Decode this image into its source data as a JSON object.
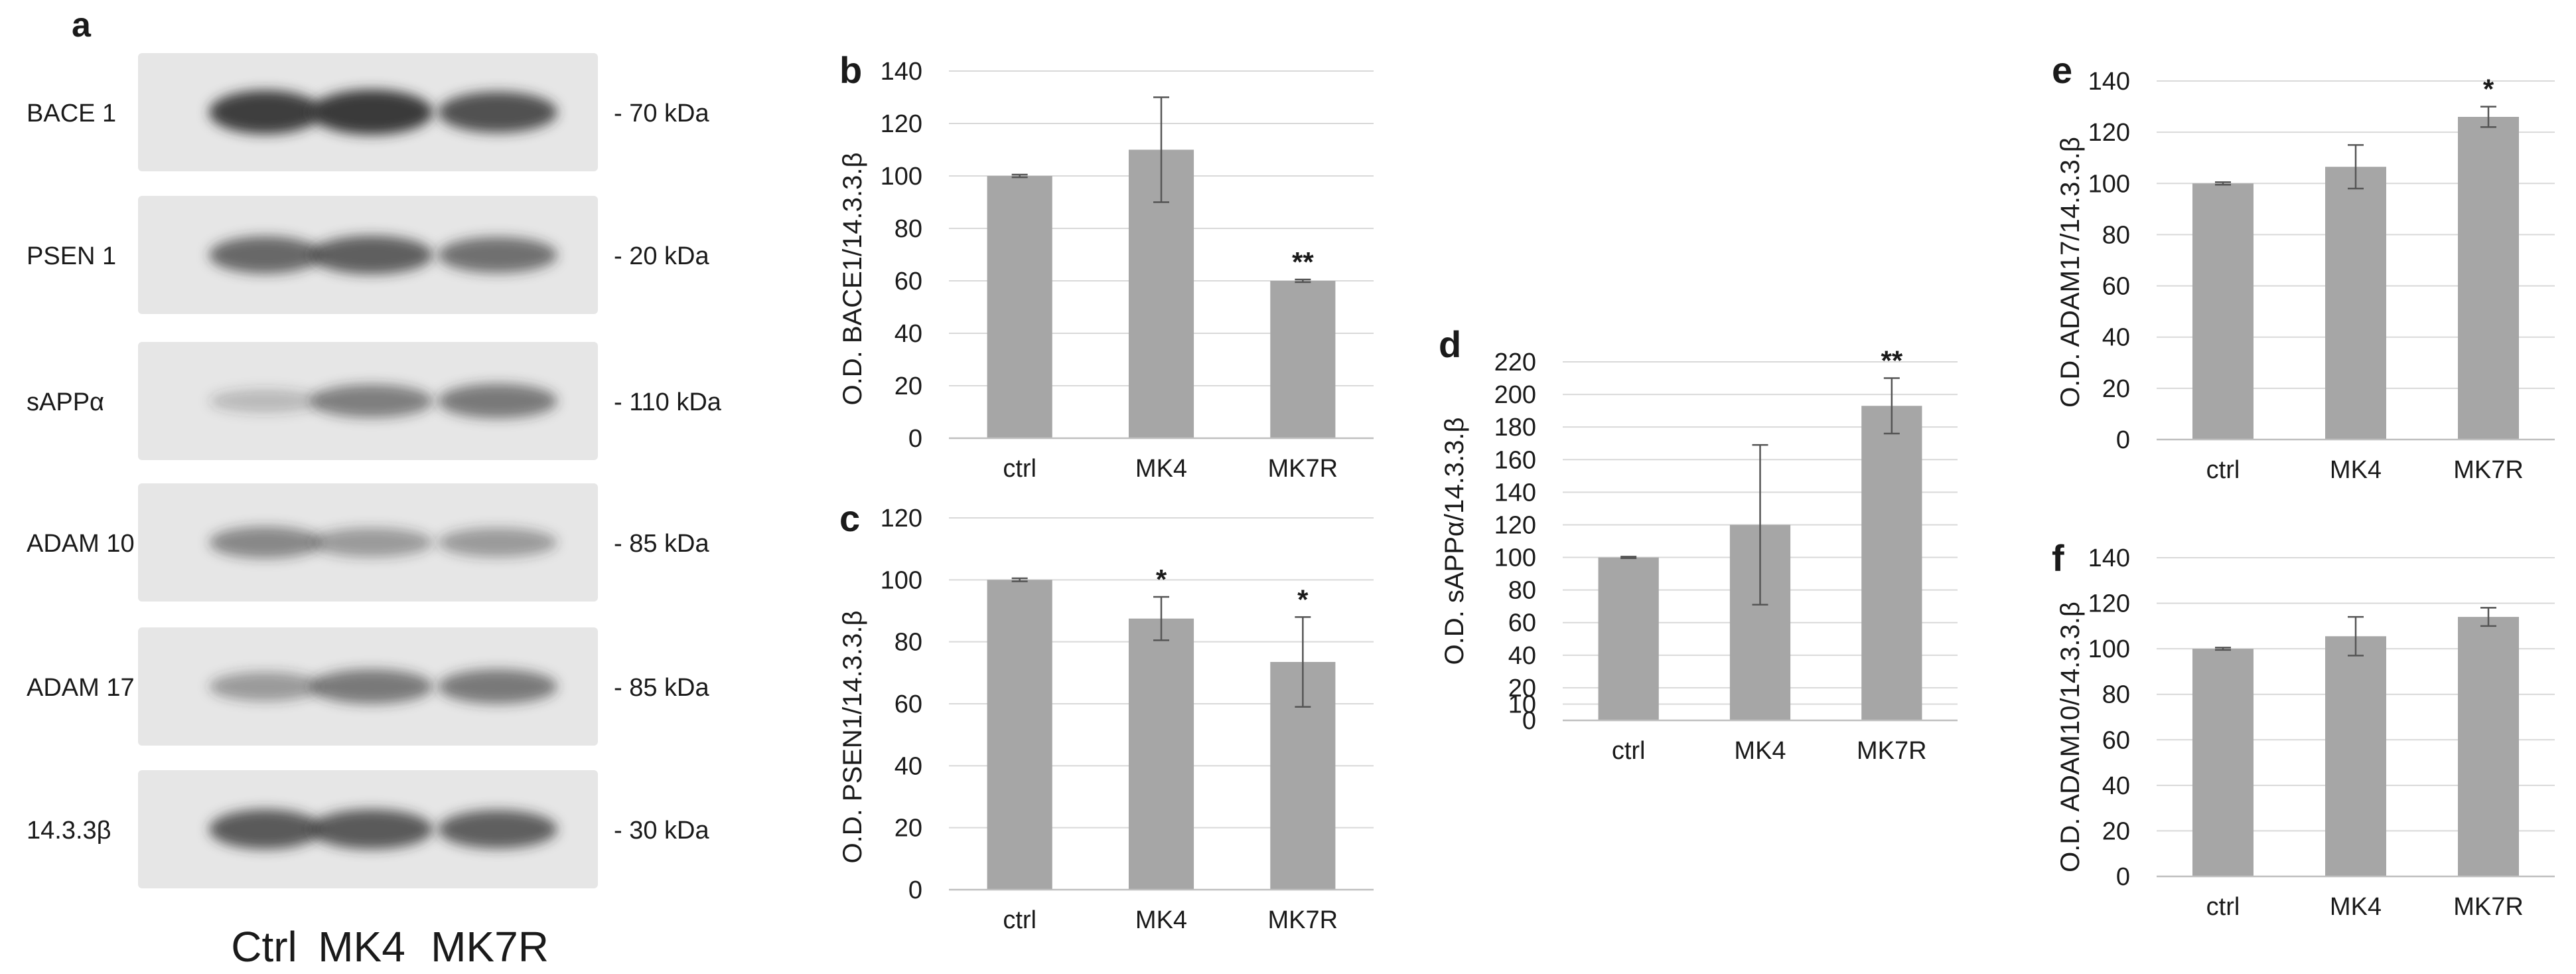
{
  "blot": {
    "panel_letter": "a",
    "bands": [
      {
        "label": "BACE 1",
        "size": "- 70 kDa"
      },
      {
        "label": "PSEN 1",
        "size": "- 20 kDa"
      },
      {
        "label": "sAPPα",
        "size": "- 110 kDa"
      },
      {
        "label": "ADAM 10",
        "size": "- 85 kDa"
      },
      {
        "label": "ADAM 17",
        "size": "- 85 kDa"
      },
      {
        "label": "14.3.3β",
        "size": "- 30 kDa"
      }
    ],
    "lanes": [
      "Ctrl",
      "MK4",
      "MK7R"
    ],
    "intensity": [
      [
        0.9,
        0.95,
        0.8
      ],
      [
        0.65,
        0.7,
        0.6
      ],
      [
        0.15,
        0.5,
        0.55
      ],
      [
        0.45,
        0.35,
        0.35
      ],
      [
        0.35,
        0.55,
        0.55
      ],
      [
        0.75,
        0.75,
        0.7
      ]
    ],
    "band_color": "#2b2b2b",
    "background": "#e6e6e6"
  },
  "chart_data": [
    {
      "id": "b",
      "panel_letter": "b",
      "type": "bar",
      "categories": [
        "ctrl",
        "MK4",
        "MK7R"
      ],
      "values": [
        100,
        110,
        60
      ],
      "errors": [
        0.5,
        20,
        0.5
      ],
      "annotations": [
        "",
        "",
        "**"
      ],
      "ylabel": "O.D. BACE1/14.3.3.β",
      "ylim": [
        0,
        140
      ],
      "yticks": [
        0,
        20,
        40,
        60,
        80,
        100,
        120,
        140
      ],
      "bar_color": "#a6a6a6",
      "grid": true
    },
    {
      "id": "c",
      "panel_letter": "c",
      "type": "bar",
      "categories": [
        "ctrl",
        "MK4",
        "MK7R"
      ],
      "values": [
        100,
        87.5,
        73.5
      ],
      "errors": [
        0.5,
        7,
        14.5
      ],
      "annotations": [
        "",
        "*",
        "*"
      ],
      "ylabel": "O.D. PSEN1/14.3.3.β",
      "ylim": [
        0,
        120
      ],
      "yticks": [
        0,
        20,
        40,
        60,
        80,
        100,
        120
      ],
      "bar_color": "#a6a6a6",
      "grid": true
    },
    {
      "id": "d",
      "panel_letter": "d",
      "type": "bar",
      "categories": [
        "ctrl",
        "MK4",
        "MK7R"
      ],
      "values": [
        100,
        120,
        193
      ],
      "errors": [
        0.5,
        49,
        17
      ],
      "annotations": [
        "",
        "",
        "**"
      ],
      "ylabel": "O.D. sAPPα/14.3.3.β",
      "ylim": [
        0,
        220
      ],
      "yticks": [
        0,
        10,
        20,
        40,
        60,
        80,
        100,
        120,
        140,
        160,
        180,
        200,
        220
      ],
      "bar_color": "#a6a6a6",
      "grid": true
    },
    {
      "id": "e",
      "panel_letter": "e",
      "type": "bar",
      "categories": [
        "ctrl",
        "MK4",
        "MK7R"
      ],
      "values": [
        100,
        106.5,
        126
      ],
      "errors": [
        0.5,
        8.5,
        4
      ],
      "annotations": [
        "",
        "",
        "*"
      ],
      "ylabel": "O.D. ADAM17/14.3.3.β",
      "ylim": [
        0,
        140
      ],
      "yticks": [
        0,
        20,
        40,
        60,
        80,
        100,
        120,
        140
      ],
      "bar_color": "#a6a6a6",
      "grid": true
    },
    {
      "id": "f",
      "panel_letter": "f",
      "type": "bar",
      "categories": [
        "ctrl",
        "MK4",
        "MK7R"
      ],
      "values": [
        100,
        105.5,
        114
      ],
      "errors": [
        0.5,
        8.5,
        4
      ],
      "annotations": [
        "",
        "",
        ""
      ],
      "ylabel": "O.D. ADAM10/14.3.3.β",
      "ylim": [
        0,
        140
      ],
      "yticks": [
        0,
        20,
        40,
        60,
        80,
        100,
        120,
        140
      ],
      "bar_color": "#a6a6a6",
      "grid": true
    }
  ]
}
